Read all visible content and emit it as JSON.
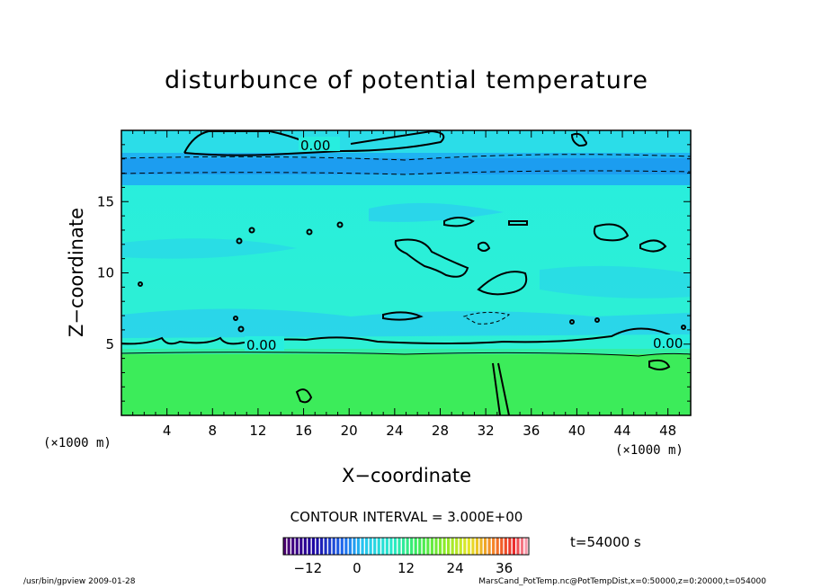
{
  "title": "disturbunce of potential temperature",
  "xlabel": "X−coordinate",
  "ylabel": "Z−coordinate",
  "x_unit_left": "(×1000 m)",
  "x_unit_right": "(×1000 m)",
  "contour_interval": "CONTOUR INTERVAL = 3.000E+00",
  "time": "t=54000 s",
  "footer_left": "/usr/bin/gpview   2009-01-28",
  "footer_right": "MarsCand_PotTemp.nc@PotTempDist,x=0:50000,z=0:20000,t=054000",
  "colors": {
    "field_lower": "#3cec5a",
    "field_mid": "#27eedf",
    "field_patch": "#2bd0ee",
    "field_band": "#1fb3f2",
    "field_band_dark": "#1c9df0"
  },
  "chart_data": {
    "type": "heatmap",
    "title": "disturbunce of potential temperature",
    "xlabel": "X−coordinate",
    "ylabel": "Z−coordinate",
    "x_unit": "×1000 m",
    "xlim": [
      0,
      50
    ],
    "ylim": [
      0,
      20
    ],
    "x_ticks": [
      "4",
      "8",
      "12",
      "16",
      "20",
      "24",
      "28",
      "32",
      "36",
      "40",
      "44",
      "48"
    ],
    "y_ticks": [
      "5",
      "10",
      "15"
    ],
    "contour_labels": [
      "0.00",
      "0.00",
      "0.00"
    ],
    "contour_interval": 3.0,
    "colorbar": {
      "ticks": [
        "−12",
        "0",
        "12",
        "24",
        "36"
      ],
      "range": [
        -18,
        42
      ]
    }
  }
}
